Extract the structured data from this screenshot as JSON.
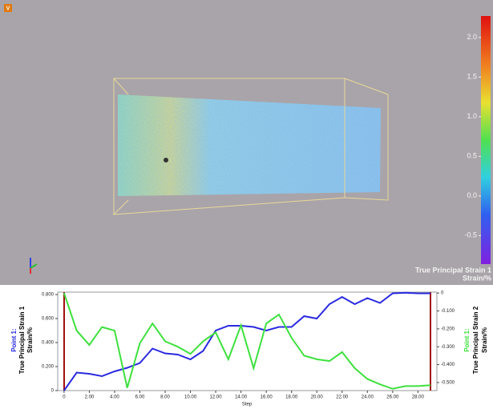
{
  "viewport": {
    "badge": "V",
    "colorbar": {
      "title": "True Principal Strain 1",
      "unit": "Strain/%",
      "lim": [
        -0.86,
        2.27
      ],
      "ticks": [
        {
          "value": 2,
          "label": "2.0"
        },
        1.5,
        {
          "value": 1,
          "label": "1.0"
        },
        0.5,
        {
          "value": 0,
          "label": "0.0"
        },
        -0.5
      ]
    }
  },
  "chart_data": {
    "type": "line",
    "xlabel": "Step",
    "y_point_label": "Point 1:",
    "y2_point_label": "Point 1:",
    "ylabel_unit": "Strain/%",
    "y2label_unit": "Strain/%",
    "x": [
      0,
      1,
      2,
      3,
      4,
      5,
      6,
      7,
      8,
      9,
      10,
      11,
      12,
      13,
      14,
      15,
      16,
      17,
      18,
      19,
      20,
      21,
      22,
      23,
      24,
      25,
      26,
      27,
      28,
      29
    ],
    "series": [
      {
        "name": "True Principal Strain 1",
        "color": "#2a2adf",
        "axis": "y",
        "values": [
          0.0,
          0.15,
          0.14,
          0.12,
          0.16,
          0.19,
          0.23,
          0.35,
          0.31,
          0.3,
          0.26,
          0.33,
          0.5,
          0.54,
          0.54,
          0.53,
          0.5,
          0.53,
          0.53,
          0.62,
          0.6,
          0.72,
          0.78,
          0.72,
          0.77,
          0.73,
          0.81,
          0.815,
          0.81,
          0.81
        ]
      },
      {
        "name": "True Principal Strain 2",
        "color": "#3ee03e",
        "axis": "y2",
        "values": [
          0.0,
          -0.21,
          -0.29,
          -0.19,
          -0.21,
          -0.53,
          -0.28,
          -0.17,
          -0.27,
          -0.3,
          -0.34,
          -0.27,
          -0.22,
          -0.37,
          -0.18,
          -0.42,
          -0.17,
          -0.12,
          -0.25,
          -0.35,
          -0.37,
          -0.38,
          -0.33,
          -0.42,
          -0.48,
          -0.51,
          -0.535,
          -0.52,
          -0.52,
          -0.515
        ]
      }
    ],
    "xlim": [
      -0.5,
      29.5
    ],
    "xticks": [
      0,
      {
        "value": 2,
        "label": "2.00"
      },
      {
        "value": 4,
        "label": "4.00"
      },
      {
        "value": 6,
        "label": "6.00"
      },
      {
        "value": 8,
        "label": "8.00"
      },
      {
        "value": 10,
        "label": "10.00"
      },
      {
        "value": 12,
        "label": "12.00"
      },
      {
        "value": 14,
        "label": "14.00"
      },
      {
        "value": 16,
        "label": "16.00"
      },
      {
        "value": 18,
        "label": "18.00"
      },
      {
        "value": 20,
        "label": "20.00"
      },
      {
        "value": 22,
        "label": "22.00"
      },
      {
        "value": 24,
        "label": "24.00"
      },
      {
        "value": 26,
        "label": "26.00"
      },
      {
        "value": 28,
        "label": "28.00"
      }
    ],
    "ylim": [
      0,
      0.82
    ],
    "yticks": [
      0,
      {
        "value": 0.2,
        "label": "0.200"
      },
      {
        "value": 0.4,
        "label": "0.400"
      },
      {
        "value": 0.6,
        "label": "0.600"
      },
      {
        "value": 0.8,
        "label": "0.800"
      }
    ],
    "y2lim": [
      -0.545,
      0.005
    ],
    "y2ticks": [
      0,
      {
        "value": -0.1,
        "label": "-0.100"
      },
      {
        "value": -0.2,
        "label": "-0.200"
      },
      {
        "value": -0.3,
        "label": "-0.300"
      },
      {
        "value": -0.4,
        "label": "-0.400"
      },
      {
        "value": -0.5,
        "label": "-0.500"
      }
    ]
  }
}
